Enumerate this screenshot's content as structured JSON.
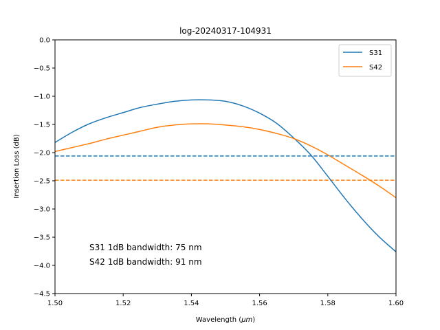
{
  "chart_data": {
    "type": "line",
    "title": "log-20240317-104931",
    "xlabel_prefix": "Wavelength (",
    "xlabel_unit": "μm",
    "xlabel_suffix": ")",
    "ylabel": "Insertion Loss (dB)",
    "xlim": [
      1.5,
      1.6
    ],
    "ylim": [
      -4.5,
      0.0
    ],
    "xticks": [
      1.5,
      1.52,
      1.54,
      1.56,
      1.58,
      1.6
    ],
    "xtick_labels": [
      "1.50",
      "1.52",
      "1.54",
      "1.56",
      "1.58",
      "1.60"
    ],
    "yticks": [
      0.0,
      -0.5,
      -1.0,
      -1.5,
      -2.0,
      -2.5,
      -3.0,
      -3.5,
      -4.0,
      -4.5
    ],
    "ytick_labels": [
      "0.0",
      "−0.5",
      "−1.0",
      "−1.5",
      "−2.0",
      "−2.5",
      "−3.0",
      "−3.5",
      "−4.0",
      "−4.5"
    ],
    "grid": false,
    "legend": "top-right",
    "series": [
      {
        "name": "S31",
        "color": "#1f77b4",
        "x": [
          1.5,
          1.505,
          1.51,
          1.515,
          1.52,
          1.525,
          1.53,
          1.535,
          1.54,
          1.545,
          1.55,
          1.555,
          1.56,
          1.565,
          1.57,
          1.575,
          1.58,
          1.585,
          1.59,
          1.595,
          1.6
        ],
        "y": [
          -1.82,
          -1.64,
          -1.49,
          -1.38,
          -1.29,
          -1.2,
          -1.14,
          -1.09,
          -1.065,
          -1.065,
          -1.09,
          -1.17,
          -1.3,
          -1.48,
          -1.74,
          -2.04,
          -2.42,
          -2.81,
          -3.17,
          -3.49,
          -3.76
        ]
      },
      {
        "name": "S42",
        "color": "#ff7f0e",
        "x": [
          1.5,
          1.505,
          1.51,
          1.515,
          1.52,
          1.525,
          1.53,
          1.535,
          1.54,
          1.545,
          1.55,
          1.555,
          1.56,
          1.565,
          1.57,
          1.575,
          1.58,
          1.585,
          1.59,
          1.595,
          1.6
        ],
        "y": [
          -1.98,
          -1.91,
          -1.84,
          -1.76,
          -1.69,
          -1.62,
          -1.55,
          -1.51,
          -1.49,
          -1.49,
          -1.51,
          -1.54,
          -1.59,
          -1.66,
          -1.75,
          -1.88,
          -2.04,
          -2.22,
          -2.4,
          -2.59,
          -2.8
        ]
      }
    ],
    "hlines": [
      {
        "y": -2.06,
        "color": "#1f77b4",
        "style": "dashed"
      },
      {
        "y": -2.49,
        "color": "#ff7f0e",
        "style": "dashed"
      }
    ],
    "annotations": [
      "S31 1dB bandwidth: 75 nm",
      "S42 1dB bandwidth: 91 nm"
    ]
  }
}
